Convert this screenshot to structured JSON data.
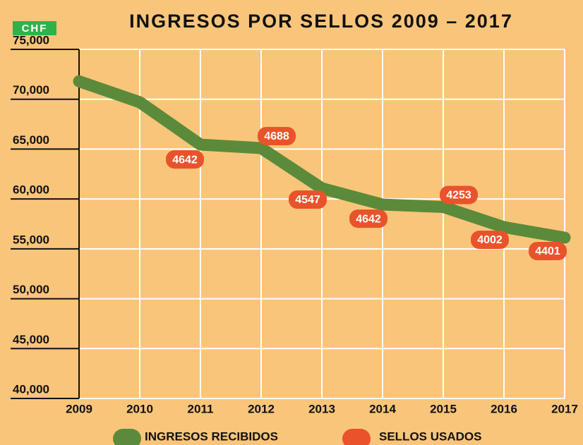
{
  "chart_data": {
    "type": "line",
    "title": "INGRESOS POR SELLOS 2009 – 2017",
    "unit_label": "CHF",
    "categories": [
      "2009",
      "2010",
      "2011",
      "2012",
      "2013",
      "2014",
      "2015",
      "2016",
      "2017"
    ],
    "series": [
      {
        "name": "INGRESOS RECIBIDOS",
        "color": "#5b8b3a",
        "values": [
          71800,
          69700,
          65450,
          65100,
          61070,
          59440,
          59200,
          57180,
          56120
        ]
      },
      {
        "name": "SELLOS USADOS",
        "color": "#e9532b",
        "values": [
          null,
          null,
          4642,
          4688,
          4547,
          4642,
          4253,
          4002,
          4401
        ]
      }
    ],
    "ylim": [
      40000,
      75000
    ],
    "yticks": [
      {
        "value": 40000,
        "label": "40,000"
      },
      {
        "value": 45000,
        "label": "45,000"
      },
      {
        "value": 50000,
        "label": "50,000"
      },
      {
        "value": 55000,
        "label": "55,000"
      },
      {
        "value": 60000,
        "label": "60,000"
      },
      {
        "value": 65000,
        "label": "65,000"
      },
      {
        "value": 70000,
        "label": "70,000"
      },
      {
        "value": 75000,
        "label": "75,000"
      }
    ],
    "grid": true
  }
}
